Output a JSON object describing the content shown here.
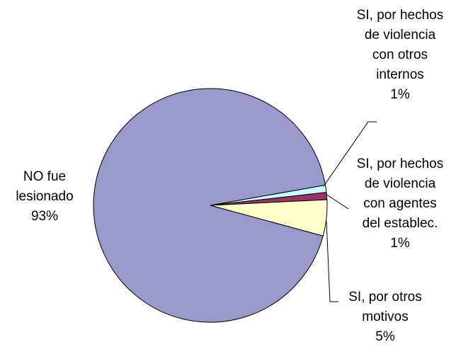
{
  "chart_data": {
    "type": "pie",
    "categories": [
      "SI, por hechos de violencia con otros internos",
      "SI, por hechos de violencia con agentes del establec.",
      "SI, por otros motivos",
      "NO fue lesionado"
    ],
    "values": [
      1,
      1,
      5,
      93
    ],
    "value_labels": [
      "1%",
      "1%",
      "5%",
      "93%"
    ],
    "colors": [
      "#ccffff",
      "#993366",
      "#ffffcc",
      "#9999cc"
    ]
  }
}
